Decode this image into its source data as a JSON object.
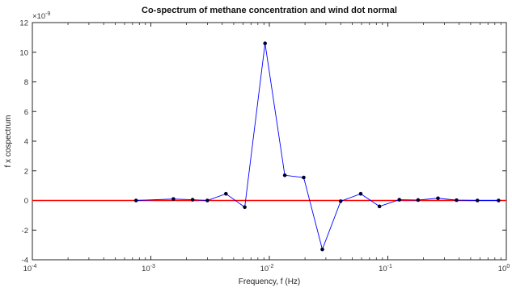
{
  "chart_data": {
    "type": "line",
    "title": "Co-spectrum of methane concentration and wind dot normal",
    "xlabel": "Frequency, f (Hz)",
    "ylabel": "f x cospectrum",
    "x_scale": "log",
    "xlim": [
      0.0001,
      1
    ],
    "ylim": [
      -4e-09,
      1.2e-08
    ],
    "y_multiplier_label": "×10",
    "y_multiplier_exponent": "-9",
    "x_tick_labels": [
      {
        "value": 0.0001,
        "base": "10",
        "exp": "-4"
      },
      {
        "value": 0.001,
        "base": "10",
        "exp": "-3"
      },
      {
        "value": 0.01,
        "base": "10",
        "exp": "-2"
      },
      {
        "value": 0.1,
        "base": "10",
        "exp": "-1"
      },
      {
        "value": 1,
        "base": "10",
        "exp": "0"
      }
    ],
    "y_tick_labels": [
      {
        "value": -4e-09,
        "label": "-4"
      },
      {
        "value": -2e-09,
        "label": "-2"
      },
      {
        "value": 0,
        "label": "0"
      },
      {
        "value": 2e-09,
        "label": "2"
      },
      {
        "value": 4e-09,
        "label": "4"
      },
      {
        "value": 6e-09,
        "label": "6"
      },
      {
        "value": 8e-09,
        "label": "8"
      },
      {
        "value": 1e-08,
        "label": "10"
      },
      {
        "value": 1.2e-08,
        "label": "12"
      }
    ],
    "grid": false,
    "series": [
      {
        "color": "#0000ff",
        "marker_color": "#000033",
        "x": [
          0.00075,
          0.00155,
          0.00225,
          0.003,
          0.0043,
          0.0062,
          0.0092,
          0.0135,
          0.0195,
          0.028,
          0.04,
          0.059,
          0.085,
          0.125,
          0.18,
          0.265,
          0.38,
          0.57,
          0.86
        ],
        "y": [
          0,
          1e-10,
          5e-11,
          0,
          4.5e-10,
          -4.5e-10,
          1.06e-08,
          1.7e-09,
          1.55e-09,
          -3.3e-09,
          -5e-11,
          4.5e-10,
          -4e-10,
          5e-11,
          3e-11,
          1.5e-10,
          2e-11,
          0,
          0
        ]
      }
    ],
    "reference_line": {
      "y": 0,
      "color": "#ff0000"
    }
  }
}
